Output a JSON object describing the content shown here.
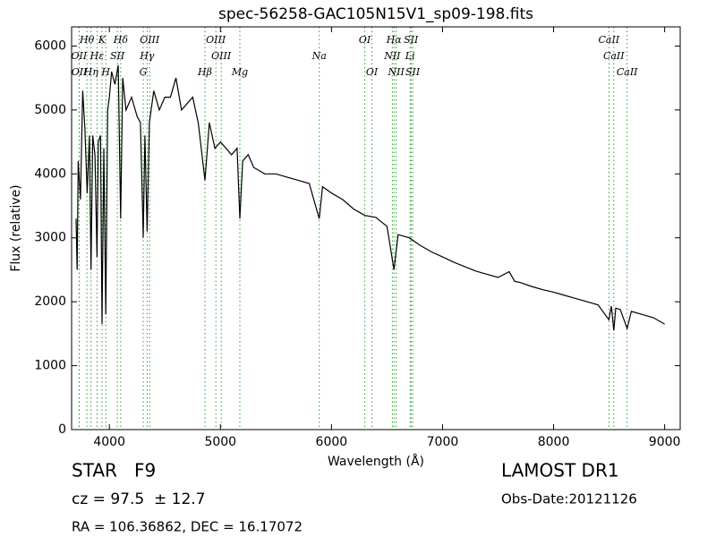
{
  "chart_data": {
    "type": "line",
    "title": "spec-56258-GAC105N15V1_sp09-198.fits",
    "x_label": "Wavelength (Å)",
    "y_label": "Flux (relative)",
    "xlim": [
      3660,
      9140
    ],
    "ylim": [
      0,
      6300
    ],
    "xticks": [
      4000,
      5000,
      6000,
      7000,
      8000,
      9000
    ],
    "yticks": [
      0,
      1000,
      2000,
      3000,
      4000,
      5000,
      6000
    ],
    "series": [
      {
        "name": "spectrum",
        "color": "#000000",
        "x": [
          3700,
          3710,
          3720,
          3740,
          3760,
          3780,
          3800,
          3820,
          3835,
          3850,
          3870,
          3889,
          3900,
          3920,
          3934,
          3950,
          3968,
          3985,
          4000,
          4020,
          4050,
          4080,
          4102,
          4120,
          4150,
          4200,
          4250,
          4280,
          4300,
          4305,
          4320,
          4340,
          4360,
          4400,
          4450,
          4500,
          4550,
          4600,
          4650,
          4700,
          4750,
          4800,
          4861,
          4900,
          4950,
          5000,
          5050,
          5100,
          5150,
          5175,
          5200,
          5250,
          5300,
          5400,
          5500,
          5600,
          5700,
          5800,
          5890,
          5920,
          6000,
          6100,
          6200,
          6300,
          6400,
          6500,
          6563,
          6600,
          6700,
          6800,
          6900,
          7000,
          7100,
          7200,
          7300,
          7400,
          7500,
          7600,
          7650,
          7700,
          7800,
          7900,
          8000,
          8100,
          8200,
          8300,
          8400,
          8498,
          8520,
          8542,
          8560,
          8600,
          8662,
          8700,
          8800,
          8900,
          9000
        ],
        "values": [
          3300,
          2500,
          4200,
          3600,
          5300,
          4700,
          3700,
          4600,
          2500,
          4600,
          4300,
          2700,
          4500,
          4600,
          1650,
          4400,
          1800,
          5000,
          5200,
          5600,
          5400,
          5700,
          3300,
          5500,
          5000,
          5200,
          4900,
          4800,
          3400,
          3000,
          4600,
          3100,
          4800,
          5300,
          5000,
          5200,
          5200,
          5500,
          5000,
          5100,
          5200,
          4800,
          3900,
          4800,
          4400,
          4500,
          4400,
          4300,
          4400,
          3300,
          4200,
          4300,
          4100,
          4000,
          4000,
          3950,
          3900,
          3850,
          3300,
          3800,
          3700,
          3600,
          3450,
          3350,
          3320,
          3180,
          2500,
          3050,
          3000,
          2880,
          2780,
          2700,
          2620,
          2550,
          2480,
          2430,
          2380,
          2470,
          2320,
          2300,
          2240,
          2190,
          2150,
          2100,
          2050,
          2000,
          1950,
          1720,
          1930,
          1550,
          1900,
          1880,
          1580,
          1850,
          1800,
          1750,
          1650
        ]
      }
    ],
    "line_color": "#2ca02c",
    "annotations": [
      [
        {
          "label": "Hθ",
          "x": 3798
        },
        {
          "label": "K",
          "x": 3934
        },
        {
          "label": "Hδ",
          "x": 4102
        },
        {
          "label": "OIII",
          "x": 4363
        },
        {
          "label": "OIII",
          "x": 4959
        },
        {
          "label": "OI",
          "x": 6300
        },
        {
          "label": "Hα",
          "x": 6563
        },
        {
          "label": "SII",
          "x": 6716
        },
        {
          "label": "CaII",
          "x": 8498
        }
      ],
      [
        {
          "label": "OII",
          "x": 3727
        },
        {
          "label": "Hε",
          "x": 3889
        },
        {
          "label": "SII",
          "x": 4072
        },
        {
          "label": "Hγ",
          "x": 4340
        },
        {
          "label": "OIII",
          "x": 5007
        },
        {
          "label": "Na",
          "x": 5890
        },
        {
          "label": "NII",
          "x": 6548
        },
        {
          "label": "Li",
          "x": 6708
        },
        {
          "label": "CaII",
          "x": 8542
        }
      ],
      [
        {
          "label": "OII",
          "x": 3729
        },
        {
          "label": "Hη",
          "x": 3835
        },
        {
          "label": "H",
          "x": 3968
        },
        {
          "label": "G",
          "x": 4305
        },
        {
          "label": "Hβ",
          "x": 4861
        },
        {
          "label": "Mg",
          "x": 5175
        },
        {
          "label": "OI",
          "x": 6364
        },
        {
          "label": "NII",
          "x": 6583
        },
        {
          "label": "SII",
          "x": 6731
        },
        {
          "label": "CaII",
          "x": 8662
        }
      ]
    ],
    "footer": {
      "class": "STAR   F9",
      "cz": "cz = 97.5  ± 12.7",
      "coords": "RA = 106.36862, DEC = 16.17072",
      "survey": "LAMOST DR1",
      "date": "Obs-Date:20121126"
    }
  }
}
